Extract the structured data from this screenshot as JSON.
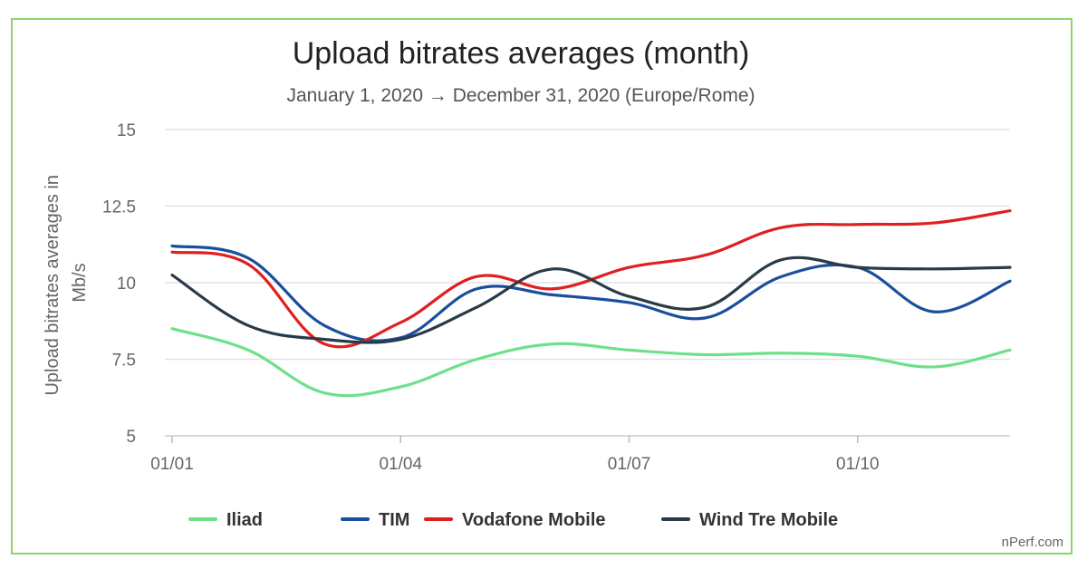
{
  "chart_data": {
    "type": "line",
    "title": "Upload bitrates averages (month)",
    "subtitle": "January 1, 2020 → December 31, 2020 (Europe/Rome)",
    "ylabel_lines": [
      "Upload bitrates averages in",
      "Mb/s"
    ],
    "xlabel": "",
    "x": [
      "2020-01",
      "2020-02",
      "2020-03",
      "2020-04",
      "2020-05",
      "2020-06",
      "2020-07",
      "2020-08",
      "2020-09",
      "2020-10",
      "2020-11",
      "2020-12"
    ],
    "x_ticks": [
      {
        "x": "2020-01",
        "label": "01/01"
      },
      {
        "x": "2020-04",
        "label": "01/04"
      },
      {
        "x": "2020-07",
        "label": "01/07"
      },
      {
        "x": "2020-10",
        "label": "01/10"
      }
    ],
    "y_ticks": [
      {
        "value": 5,
        "label": "5"
      },
      {
        "value": 7.5,
        "label": "7.5"
      },
      {
        "value": 10,
        "label": "10"
      },
      {
        "value": 12.5,
        "label": "12.5"
      },
      {
        "value": 15,
        "label": "15"
      }
    ],
    "ylim": [
      5,
      15
    ],
    "grid": true,
    "legend_position": "bottom",
    "series": [
      {
        "name": "Iliad",
        "color": "#6ee08a",
        "values": [
          8.5,
          7.8,
          6.4,
          6.6,
          7.5,
          8.0,
          7.8,
          7.65,
          7.7,
          7.6,
          7.25,
          7.8
        ]
      },
      {
        "name": "TIM",
        "color": "#1a4f9c",
        "values": [
          11.2,
          10.8,
          8.6,
          8.2,
          9.8,
          9.6,
          9.35,
          8.85,
          10.2,
          10.5,
          9.05,
          10.05
        ]
      },
      {
        "name": "Vodafone Mobile",
        "color": "#e01f1f",
        "values": [
          11.0,
          10.6,
          8.0,
          8.7,
          10.2,
          9.8,
          10.5,
          10.9,
          11.8,
          11.9,
          11.95,
          12.35
        ]
      },
      {
        "name": "Wind Tre Mobile",
        "color": "#2b3a48",
        "values": [
          10.25,
          8.6,
          8.15,
          8.15,
          9.2,
          10.45,
          9.55,
          9.2,
          10.75,
          10.5,
          10.45,
          10.5
        ]
      }
    ],
    "credit": "nPerf.com"
  }
}
